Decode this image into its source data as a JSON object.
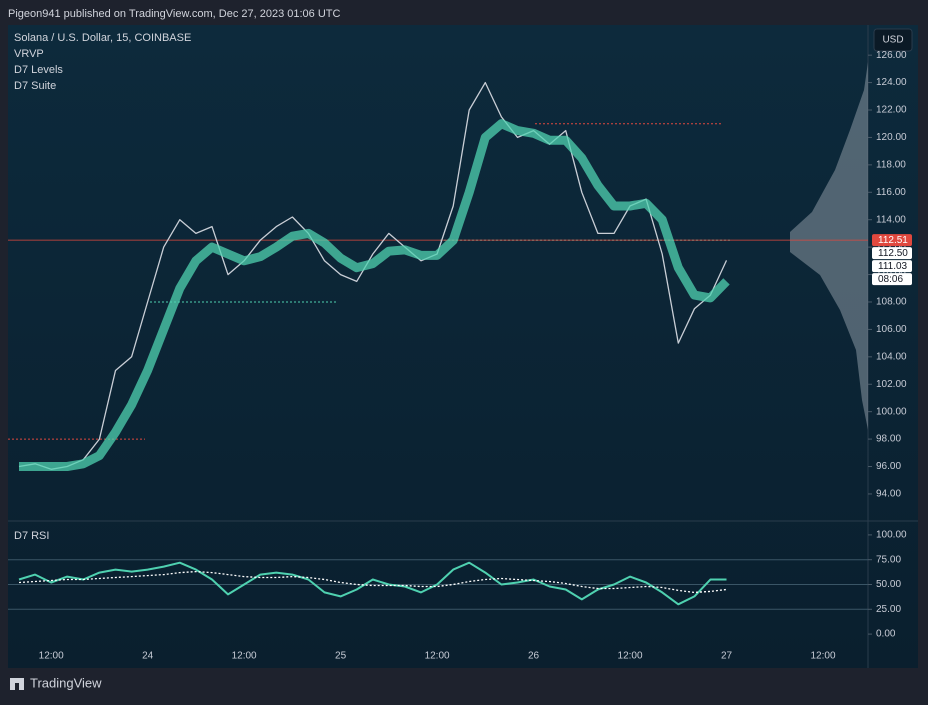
{
  "header": {
    "text": "Pigeon941 published on TradingView.com, Dec 27, 2023 01:06 UTC"
  },
  "footer": {
    "brand": "TradingView"
  },
  "chart_data": [
    {
      "type": "line",
      "title": "Solana / U.S. Dollar, 15, COINBASE",
      "indicators": [
        "VRVP",
        "D7 Levels",
        "D7 Suite"
      ],
      "currency": "USD",
      "series": [
        {
          "name": "Solana / U.S. Dollar, 15, COINBASE",
          "color": "#c9ced6",
          "values": [
            96,
            96.2,
            95.8,
            96,
            96.5,
            98,
            103,
            104,
            108,
            112,
            114,
            113,
            113.5,
            110,
            111,
            112.5,
            113.5,
            114.2,
            113,
            111,
            110,
            109.5,
            111.5,
            113,
            112,
            111,
            111.5,
            115,
            122,
            124,
            121.5,
            120,
            120.5,
            119.5,
            120.5,
            116,
            113,
            113,
            115,
            115.5,
            111.5,
            105,
            107.5,
            108.5,
            111.03,
            null,
            null,
            null,
            null,
            null,
            null,
            null,
            null
          ]
        },
        {
          "name": "D7 Suite",
          "color": "#4fd1b0",
          "values": [
            96,
            96,
            96,
            96,
            96.2,
            96.8,
            98.5,
            100.5,
            103,
            106,
            109,
            111,
            112,
            111.5,
            111,
            111.3,
            112,
            112.8,
            113,
            112.3,
            111.2,
            110.5,
            110.8,
            111.7,
            111.8,
            111.4,
            111.4,
            112.5,
            116,
            120,
            121,
            120.5,
            120.3,
            119.8,
            119.8,
            118.5,
            116.5,
            115,
            115,
            115.2,
            114,
            110.5,
            108.5,
            108.3,
            109.5,
            null,
            null,
            null,
            null,
            null,
            null,
            null,
            null
          ]
        }
      ],
      "levels": [
        {
          "value": 121,
          "color": "#e0483e"
        },
        {
          "value": 112.5,
          "color": "#4fd1b0"
        },
        {
          "value": 108,
          "color": "#4fd1b0"
        },
        {
          "value": 98,
          "color": "#e0483e"
        }
      ],
      "price_line": {
        "value": 112.51,
        "color": "#e0483e"
      },
      "price_tags": [
        {
          "value": 112.51,
          "label": "112.51",
          "color": "#e0483e"
        },
        {
          "value": 112.5,
          "label": "112.50",
          "color": "#ffffff"
        },
        {
          "value": 111.03,
          "label": "111.03",
          "color": "#ffffff"
        }
      ],
      "countdown": "08:06",
      "ylim": [
        92.1,
        128.2
      ],
      "yticks": [
        {
          "value": 94,
          "label": "94.00"
        },
        {
          "value": 96,
          "label": "96.00"
        },
        {
          "value": 98,
          "label": "98.00"
        },
        {
          "value": 100,
          "label": "100.00"
        },
        {
          "value": 102,
          "label": "102.00"
        },
        {
          "value": 104,
          "label": "104.00"
        },
        {
          "value": 106,
          "label": "106.00"
        },
        {
          "value": 108,
          "label": "108.00"
        },
        {
          "value": 110,
          "label": "110.00"
        },
        {
          "value": 112,
          "label": "112.00"
        },
        {
          "value": 114,
          "label": "114.00"
        },
        {
          "value": 116,
          "label": "116.00"
        },
        {
          "value": 118,
          "label": "118.00"
        },
        {
          "value": 120,
          "label": "120.00"
        },
        {
          "value": 122,
          "label": "122.00"
        },
        {
          "value": 124,
          "label": "124.00"
        },
        {
          "value": 126,
          "label": "126.00"
        }
      ]
    },
    {
      "type": "line",
      "title": "D7 RSI",
      "categories": [
        null,
        null,
        "12:00",
        null,
        null,
        null,
        null,
        null,
        "24",
        null,
        null,
        null,
        null,
        null,
        "12:00",
        null,
        null,
        null,
        null,
        null,
        "25",
        null,
        null,
        null,
        null,
        null,
        "12:00",
        null,
        null,
        null,
        null,
        null,
        "26",
        null,
        null,
        null,
        null,
        null,
        "12:00",
        null,
        null,
        null,
        null,
        null,
        "27",
        null,
        null,
        null,
        null,
        null,
        "12:00",
        null,
        null
      ],
      "series": [
        {
          "name": "D7 RSI",
          "color": "#4fd1b0",
          "values": [
            55,
            60,
            52,
            58,
            55,
            62,
            65,
            63,
            65,
            68,
            72,
            65,
            55,
            40,
            50,
            60,
            62,
            60,
            55,
            42,
            38,
            45,
            55,
            50,
            48,
            42,
            50,
            65,
            72,
            62,
            50,
            52,
            55,
            48,
            45,
            35,
            45,
            50,
            58,
            52,
            42,
            30,
            38,
            55,
            55,
            null,
            null,
            null,
            null,
            null,
            null,
            null,
            null
          ]
        },
        {
          "color": "#ffffff",
          "values": [
            52,
            53,
            54,
            55,
            55,
            56,
            57,
            58,
            59,
            60,
            62,
            63,
            62,
            60,
            58,
            57,
            57,
            58,
            57,
            55,
            52,
            50,
            49,
            49,
            49,
            48,
            48,
            50,
            53,
            55,
            56,
            55,
            54,
            53,
            51,
            48,
            46,
            46,
            47,
            48,
            47,
            44,
            42,
            43,
            45,
            null,
            null,
            null,
            null,
            null,
            null,
            null,
            null
          ]
        }
      ],
      "ylim": [
        -11,
        113
      ],
      "yticks": [
        {
          "value": 0,
          "label": "0.00"
        },
        {
          "value": 25,
          "label": "25.00"
        },
        {
          "value": 50,
          "label": "50.00"
        },
        {
          "value": 75,
          "label": "75.00"
        },
        {
          "value": 100,
          "label": "100.00"
        }
      ]
    }
  ]
}
